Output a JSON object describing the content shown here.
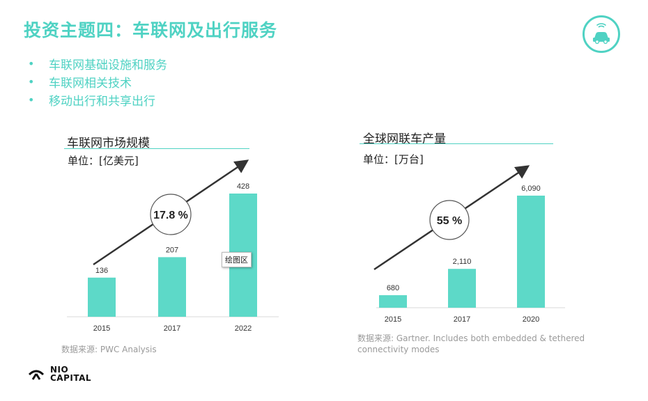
{
  "header": {
    "title": "投资主题四：车联网及出行服务",
    "accent_color": "#4fd2c3",
    "logo_icon": "connected-car-icon"
  },
  "bullets": [
    "车联网基础设施和服务",
    "车联网相关技术",
    "移动出行和共享出行"
  ],
  "panels": [
    {
      "title": "车联网市场规模",
      "unit": "单位：[亿美元]",
      "growth": "17.8 %",
      "source": "数据来源: PWC Analysis"
    },
    {
      "title": "全球网联车产量",
      "unit": "单位：[万台]",
      "growth": "55 %",
      "source": "数据来源: Gartner. Includes both embedded & tethered connectivity modes"
    }
  ],
  "tooltip": "绘图区",
  "brand": {
    "line1": "NIO",
    "line2": "CAPITAL"
  },
  "chart_data": [
    {
      "type": "bar",
      "title": "车联网市场规模",
      "ylabel": "单位：[亿美元]",
      "categories": [
        "2015",
        "2017",
        "2022"
      ],
      "values": [
        136,
        207,
        428
      ],
      "value_labels": [
        "136",
        "207",
        "428"
      ],
      "ylim": [
        0,
        450
      ],
      "annotation": "17.8 %",
      "bar_color": "#5dd9c8",
      "grid": false,
      "legend": "none"
    },
    {
      "type": "bar",
      "title": "全球网联车产量",
      "ylabel": "单位：[万台]",
      "categories": [
        "2015",
        "2017",
        "2020"
      ],
      "values": [
        680,
        2110,
        6090
      ],
      "value_labels": [
        "680",
        "2,110",
        "6,090"
      ],
      "ylim": [
        0,
        6400
      ],
      "annotation": "55 %",
      "bar_color": "#5dd9c8",
      "grid": false,
      "legend": "none"
    }
  ]
}
